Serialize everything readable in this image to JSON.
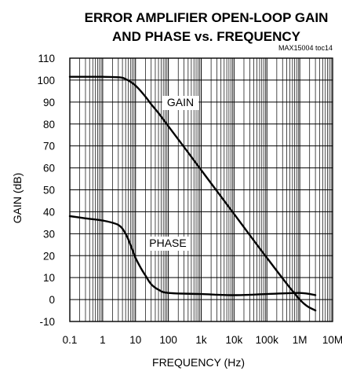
{
  "chart_data": {
    "type": "line",
    "title_line1": "ERROR AMPLIFIER OPEN-LOOP GAIN",
    "title_line2": "AND PHASE vs. FREQUENCY",
    "figure_id": "MAX15004 toc14",
    "xlabel": "FREQUENCY (Hz)",
    "ylabel": "GAIN (dB)",
    "x_scale": "log",
    "xlim": [
      0.1,
      10000000
    ],
    "ylim": [
      -10,
      110
    ],
    "grid": true,
    "x_tick_labels": [
      "0.1",
      "1",
      "10",
      "100",
      "1k",
      "10k",
      "100k",
      "1M",
      "10M"
    ],
    "y_tick_labels": [
      "110",
      "100",
      "90",
      "80",
      "70",
      "60",
      "50",
      "40",
      "30",
      "20",
      "10",
      "0",
      "-10"
    ],
    "series": [
      {
        "name": "GAIN",
        "x": [
          0.1,
          0.3,
          1,
          3,
          5,
          10,
          20,
          30,
          50,
          100,
          300,
          1000,
          10000,
          100000,
          1000000,
          3000000
        ],
        "y": [
          101.5,
          101.5,
          101.5,
          101.3,
          100.5,
          97.5,
          92.5,
          89,
          85,
          79,
          69.5,
          59,
          39,
          19,
          0,
          -5
        ]
      },
      {
        "name": "PHASE",
        "x": [
          0.1,
          0.3,
          1,
          3,
          5,
          7,
          10,
          15,
          20,
          30,
          50,
          100,
          1000,
          10000,
          100000,
          1000000,
          3000000
        ],
        "y": [
          38,
          37,
          36,
          34,
          30,
          25,
          19,
          14,
          11,
          7,
          4.5,
          3,
          2.5,
          2,
          2.5,
          3,
          2
        ]
      }
    ]
  }
}
